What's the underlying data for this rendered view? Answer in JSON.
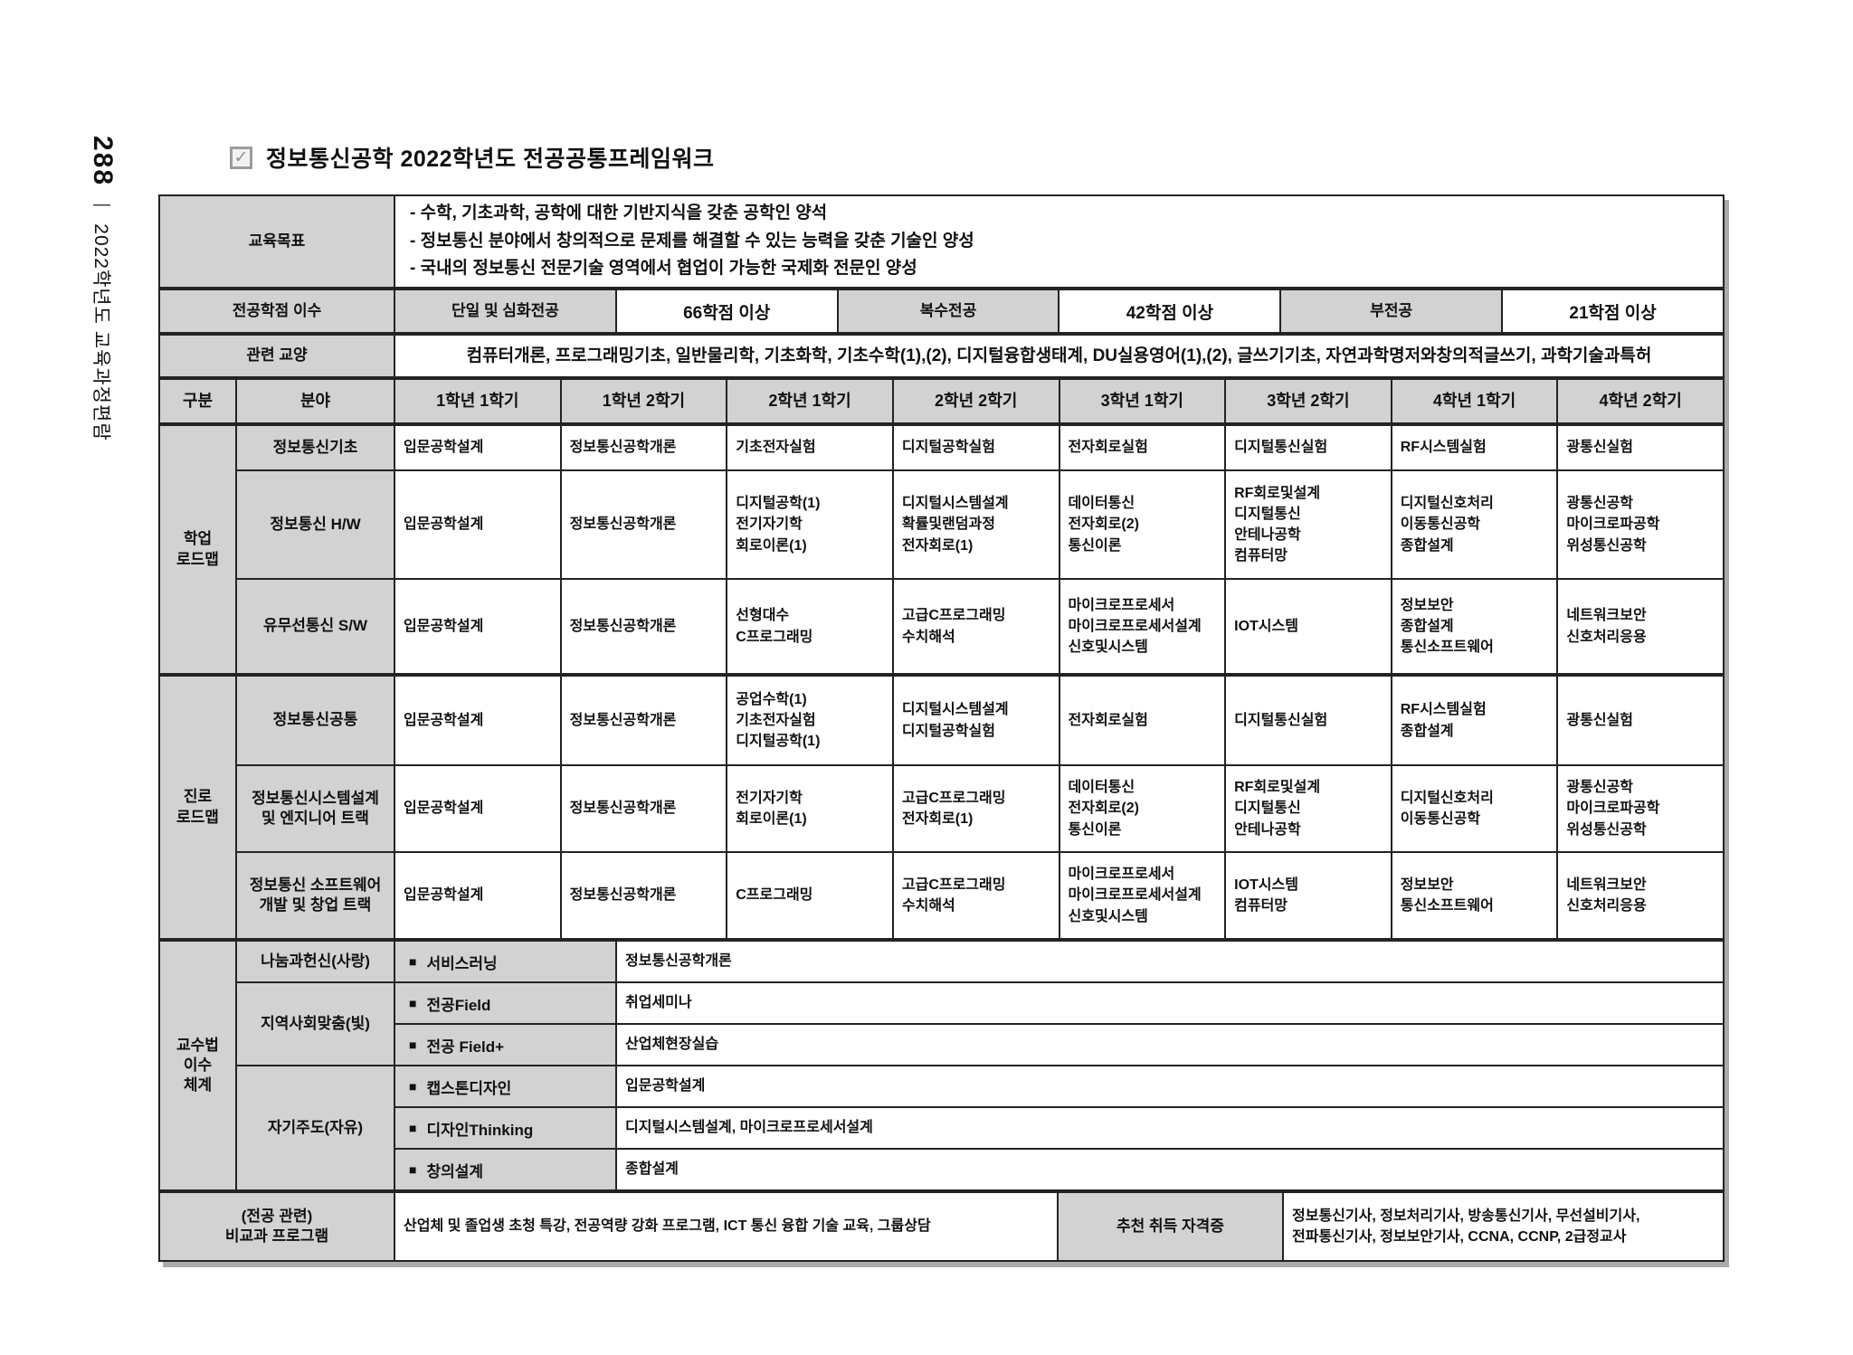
{
  "page": {
    "page_number": "288",
    "spine_divider": "|",
    "edition": "2022학년도 교육과정편람",
    "title": "정보통신공학 2022학년도 전공공통프레임워크"
  },
  "glyphs": {
    "check": "✓",
    "square_bullet": "■"
  },
  "table": {
    "goal": {
      "label": "교육목표",
      "lines": "- 수학, 기초과학, 공학에 대한 기반지식을 갖춘 공학인 양석\n- 정보통신 분야에서 창의적으로 문제를 해결할 수 있는 능력을 갖춘 기술인 양성\n- 국내의 정보통신 전문기술 영역에서 협업이 가능한 국제화 전문인 양성"
    },
    "credits": {
      "label": "전공학점 이수",
      "cells": [
        "단일 및 심화전공",
        "66학점 이상",
        "복수전공",
        "42학점 이상",
        "부전공",
        "21학점 이상"
      ]
    },
    "liberal": {
      "label": "관련 교양",
      "text": "컴퓨터개론, 프로그래밍기초, 일반물리학, 기초화학, 기초수학(1),(2), 디지털융합생태계, DU실용영어(1),(2), 글쓰기기초, 자연과학명저와창의적글쓰기, 과학기술과특허"
    },
    "header": {
      "cols": [
        "구분",
        "분야",
        "1학년 1학기",
        "1학년 2학기",
        "2학년 1학기",
        "2학년 2학기",
        "3학년 1학기",
        "3학년 2학기",
        "4학년 1학기",
        "4학년 2학기"
      ]
    },
    "roadmap": [
      {
        "group": "학업\n로드맵",
        "rows": [
          {
            "category": "정보통신기초",
            "cells": [
              "입문공학설계",
              "정보통신공학개론",
              "기초전자실험",
              "디지털공학실험",
              "전자회로실험",
              "디지털통신실험",
              "RF시스템실험",
              "광통신실험"
            ]
          },
          {
            "category": "정보통신 H/W",
            "cells": [
              "입문공학설계",
              "정보통신공학개론",
              "디지털공학(1)\n전기자기학\n회로이론(1)",
              "디지털시스템설계\n확률및랜덤과정\n전자회로(1)",
              "데이터통신\n전자회로(2)\n통신이론",
              "RF회로및설계\n디지털통신\n안테나공학\n컴퓨터망",
              "디지털신호처리\n이동통신공학\n종합설계",
              "광통신공학\n마이크로파공학\n위성통신공학"
            ]
          },
          {
            "category": "유무선통신 S/W",
            "cells": [
              "입문공학설계",
              "정보통신공학개론",
              "선형대수\nC프로그래밍",
              "고급C프로그래밍\n수치해석",
              "마이크로프로세서\n마이크로프로세서설계\n신호및시스템",
              "IOT시스템",
              "정보보안\n종합설계\n통신소프트웨어",
              "네트워크보안\n신호처리응용"
            ]
          }
        ]
      },
      {
        "group": "진로\n로드맵",
        "rows": [
          {
            "category": "정보통신공통",
            "cells": [
              "입문공학설계",
              "정보통신공학개론",
              "공업수학(1)\n기초전자실험\n디지털공학(1)",
              "디지털시스템설계\n디지털공학실험",
              "전자회로실험",
              "디지털통신실험",
              "RF시스템실험\n종합설계",
              "광통신실험"
            ]
          },
          {
            "category": "정보통신시스템설계\n및 엔지니어 트랙",
            "cells": [
              "입문공학설계",
              "정보통신공학개론",
              "전기자기학\n회로이론(1)",
              "고급C프로그래밍\n전자회로(1)",
              "데이터통신\n전자회로(2)\n통신이론",
              "RF회로및설계\n디지털통신\n안테나공학",
              "디지털신호처리\n이동통신공학",
              "광통신공학\n마이크로파공학\n위성통신공학"
            ]
          },
          {
            "category": "정보통신 소프트웨어\n개발 및 창업 트랙",
            "cells": [
              "입문공학설계",
              "정보통신공학개론",
              "C프로그래밍",
              "고급C프로그래밍\n수치해석",
              "마이크로프로세서\n마이크로프로세서설계\n신호및시스템",
              "IOT시스템\n컴퓨터망",
              "정보보안\n통신소프트웨어",
              "네트워크보안\n신호처리응용"
            ]
          }
        ]
      }
    ],
    "pedagogy": {
      "group": "교수법\n이수\n체계",
      "areas": [
        {
          "label": "나눔과헌신(사랑)",
          "items": [
            {
              "method": "서비스러닝",
              "courses": "정보통신공학개론"
            }
          ]
        },
        {
          "label": "지역사회맞춤(빛)",
          "items": [
            {
              "method": "전공Field",
              "courses": "취업세미나"
            },
            {
              "method": "전공 Field+",
              "courses": "산업체현장실습"
            }
          ]
        },
        {
          "label": "자기주도(자유)",
          "items": [
            {
              "method": "캡스톤디자인",
              "courses": "입문공학설계"
            },
            {
              "method": "디자인Thinking",
              "courses": "디지털시스템설계, 마이크로프로세서설계"
            },
            {
              "method": "창의설계",
              "courses": "종합설계"
            }
          ]
        }
      ]
    },
    "extra": {
      "label": "(전공 관련)\n비교과 프로그램",
      "programs": "산업체 및 졸업생 초청 특강, 전공역량 강화 프로그램, ICT 통신 융합 기술 교육, 그룹상담",
      "cert_label": "추천 취득 자격증",
      "certs": "정보통신기사, 정보처리기사, 방송통신기사, 무선설비기사,\n전파통신기사, 정보보안기사, CCNA, CCNP, 2급정교사"
    }
  }
}
